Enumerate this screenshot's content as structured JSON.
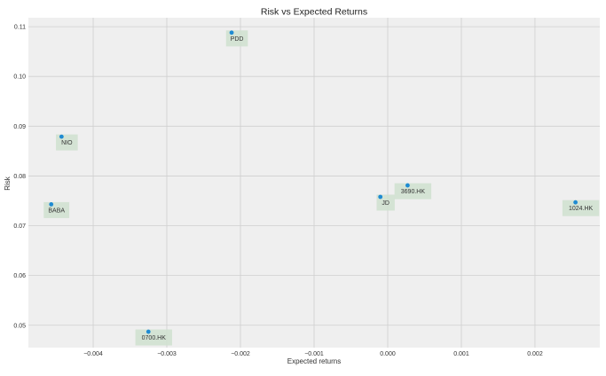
{
  "chart_data": {
    "type": "scatter",
    "title": "Risk vs Expected Returns",
    "xlabel": "Expected returns",
    "ylabel": "Risk",
    "xlim": [
      -0.00488,
      0.00288
    ],
    "ylim": [
      0.0455,
      0.1118
    ],
    "x_ticks": [
      -0.004,
      -0.003,
      -0.002,
      -0.001,
      0.0,
      0.001,
      0.002
    ],
    "x_tick_labels": [
      "−0.004",
      "−0.003",
      "−0.002",
      "−0.001",
      "0.000",
      "0.001",
      "0.002"
    ],
    "y_ticks": [
      0.05,
      0.06,
      0.07,
      0.08,
      0.09,
      0.1,
      0.11
    ],
    "y_tick_labels": [
      "0.05",
      "0.06",
      "0.07",
      "0.08",
      "0.09",
      "0.10",
      "0.11"
    ],
    "grid": true,
    "points": [
      {
        "label": "PDD",
        "x": -0.00212,
        "y": 0.1088
      },
      {
        "label": "NIO",
        "x": -0.00443,
        "y": 0.0879
      },
      {
        "label": "BABA",
        "x": -0.00457,
        "y": 0.0743
      },
      {
        "label": "JD",
        "x": -0.0001,
        "y": 0.0758
      },
      {
        "label": "3690.HK",
        "x": 0.00027,
        "y": 0.0781
      },
      {
        "label": "1024.HK",
        "x": 0.00255,
        "y": 0.0747
      },
      {
        "label": "0700.HK",
        "x": -0.00325,
        "y": 0.0487
      }
    ],
    "colors": {
      "background": "#efefef",
      "grid": "#cfcfcf",
      "point": "#1f8bd2",
      "label_box": "#cfe0cf"
    }
  }
}
